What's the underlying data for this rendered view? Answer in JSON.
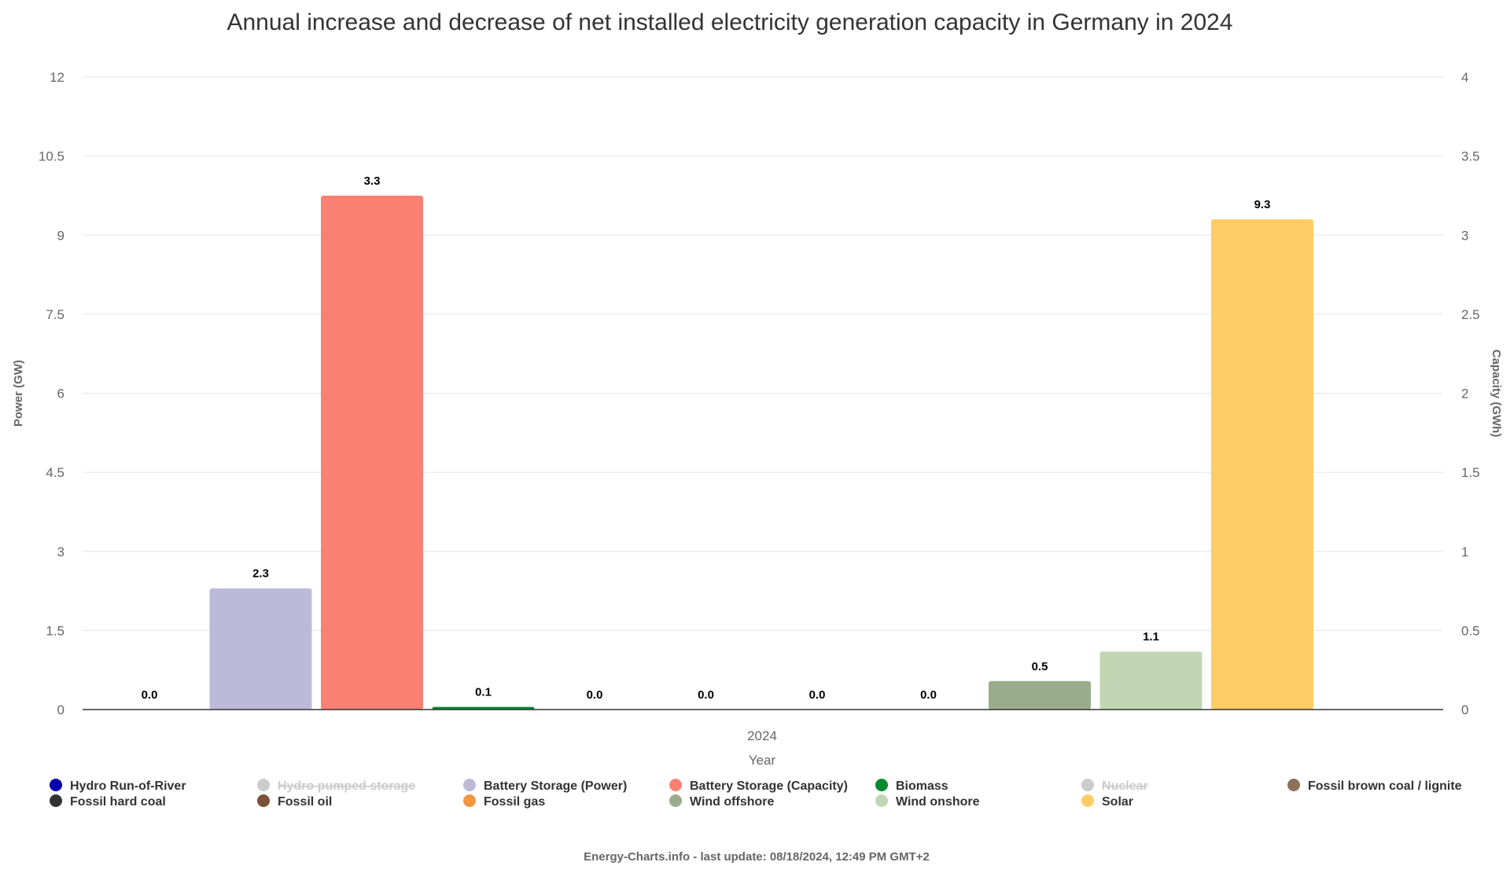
{
  "chart_data": {
    "type": "bar",
    "title": "Annual increase and decrease of net installed electricity generation capacity in Germany in 2024",
    "xlabel": "Year",
    "ylabel_left": "Power (GW)",
    "ylabel_right": "Capacity (GWh)",
    "categories": [
      "2024"
    ],
    "y_left": {
      "min": 0,
      "max": 12,
      "ticks": [
        "0",
        "1.5",
        "3",
        "4.5",
        "6",
        "7.5",
        "9",
        "10.5",
        "12"
      ]
    },
    "y_right": {
      "min": 0,
      "max": 4,
      "ticks": [
        "0",
        "0.5",
        "1",
        "1.5",
        "2",
        "2.5",
        "3",
        "3.5",
        "4"
      ]
    },
    "grid": true,
    "legend_position": "bottom",
    "series": [
      {
        "name": "Hydro Run-of-River",
        "color": "#0000aa",
        "value": 0.0,
        "label": "0.0",
        "axis": "left",
        "visible": true
      },
      {
        "name": "Hydro pumped storage",
        "color": "#cccccc",
        "value": null,
        "label": "",
        "axis": "left",
        "visible": false
      },
      {
        "name": "Battery Storage (Power)",
        "color": "#bdbad9",
        "value": 2.3,
        "label": "2.3",
        "axis": "left",
        "visible": true
      },
      {
        "name": "Battery Storage (Capacity)",
        "color": "#fa8072",
        "value": 3.25,
        "label": "3.3",
        "axis": "right",
        "visible": true
      },
      {
        "name": "Biomass",
        "color": "#008b2e",
        "value": 0.05,
        "label": "0.1",
        "axis": "left",
        "visible": true
      },
      {
        "name": "Nuclear",
        "color": "#cccccc",
        "value": null,
        "label": "",
        "axis": "left",
        "visible": false
      },
      {
        "name": "Fossil brown coal / lignite",
        "color": "#8b7259",
        "value": 0.0,
        "label": "0.0",
        "axis": "left",
        "visible": true
      },
      {
        "name": "Fossil hard coal",
        "color": "#333333",
        "value": 0.0,
        "label": "0.0",
        "axis": "left",
        "visible": true
      },
      {
        "name": "Fossil oil",
        "color": "#7a5238",
        "value": 0.0,
        "label": "0.0",
        "axis": "left",
        "visible": true
      },
      {
        "name": "Fossil gas",
        "color": "#f29740",
        "value": 0.0,
        "label": "0.0",
        "axis": "left",
        "visible": true
      },
      {
        "name": "Wind offshore",
        "color": "#99ad8c",
        "value": 0.54,
        "label": "0.5",
        "axis": "left",
        "visible": true
      },
      {
        "name": "Wind onshore",
        "color": "#c1d7b4",
        "value": 1.1,
        "label": "1.1",
        "axis": "left",
        "visible": true
      },
      {
        "name": "Solar",
        "color": "#ffcc66",
        "value": 9.3,
        "label": "9.3",
        "axis": "left",
        "visible": true
      }
    ]
  },
  "footer": {
    "credit": "Energy-Charts.info - last update: 08/18/2024, 12:49 PM GMT+2"
  }
}
